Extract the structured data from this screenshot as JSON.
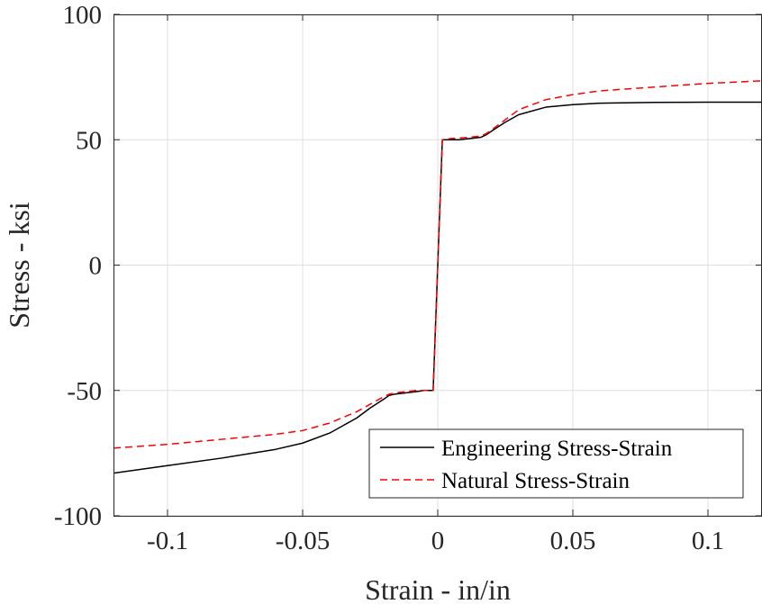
{
  "chart_data": {
    "type": "line",
    "title": "",
    "xlabel": "Strain - in/in",
    "ylabel": "Stress - ksi",
    "xlim": [
      -0.12,
      0.12
    ],
    "ylim": [
      -100,
      100
    ],
    "xticks": [
      -0.1,
      -0.05,
      0,
      0.05,
      0.1
    ],
    "xtick_labels": [
      "-0.1",
      "-0.05",
      "0",
      "0.05",
      "0.1"
    ],
    "yticks": [
      -100,
      -50,
      0,
      50,
      100
    ],
    "ytick_labels": [
      "-100",
      "-50",
      "0",
      "50",
      "100"
    ],
    "grid": true,
    "legend_position": "bottom-right",
    "series": [
      {
        "name": "Engineering Stress-Strain",
        "color": "#000000",
        "dash": "solid",
        "x": [
          -0.12,
          -0.1,
          -0.08,
          -0.06,
          -0.05,
          -0.04,
          -0.03,
          -0.025,
          -0.02,
          -0.018,
          -0.016,
          -0.012,
          -0.008,
          -0.005,
          -0.003,
          -0.0017,
          0.0017,
          0.003,
          0.005,
          0.008,
          0.012,
          0.016,
          0.018,
          0.02,
          0.025,
          0.03,
          0.04,
          0.05,
          0.06,
          0.08,
          0.1,
          0.12
        ],
        "y": [
          -83,
          -80,
          -77,
          -73.5,
          -71,
          -67,
          -61,
          -57,
          -53.5,
          -52,
          -51.5,
          -51,
          -50.5,
          -50,
          -50,
          -50,
          50,
          50,
          50,
          50,
          50.5,
          51,
          52,
          53.5,
          57,
          60,
          63,
          64,
          64.6,
          64.9,
          65,
          65
        ]
      },
      {
        "name": "Natural Stress-Strain",
        "color": "#ff0000",
        "dash": "dashed",
        "x": [
          -0.12,
          -0.1,
          -0.08,
          -0.06,
          -0.05,
          -0.04,
          -0.03,
          -0.025,
          -0.02,
          -0.018,
          -0.016,
          -0.012,
          -0.008,
          -0.005,
          -0.003,
          -0.0017,
          0.0017,
          0.003,
          0.005,
          0.008,
          0.012,
          0.016,
          0.018,
          0.02,
          0.025,
          0.03,
          0.04,
          0.05,
          0.06,
          0.08,
          0.1,
          0.12
        ],
        "y": [
          -73,
          -71.5,
          -69.5,
          -67.5,
          -66,
          -63,
          -58.5,
          -55.5,
          -52.5,
          -51.5,
          -51,
          -50.5,
          -50,
          -50,
          -50,
          -50,
          50,
          50.2,
          50.5,
          50.7,
          51,
          51.5,
          52.5,
          54,
          58,
          62,
          66,
          68,
          69.5,
          71,
          72.5,
          73.5
        ]
      }
    ]
  }
}
